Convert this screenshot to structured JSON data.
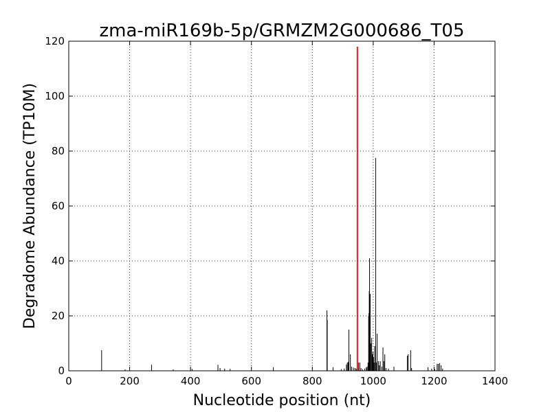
{
  "chart_data": {
    "type": "bar",
    "title": "zma-miR169b-5p/GRMZM2G000686_T05",
    "xlabel": "Nucleotide position (nt)",
    "ylabel": "Degradome Abundance (TP10M)",
    "xlim": [
      0,
      1400
    ],
    "ylim": [
      0,
      120
    ],
    "xticks": [
      0,
      200,
      400,
      600,
      800,
      1000,
      1200,
      1400
    ],
    "yticks": [
      0,
      20,
      40,
      60,
      80,
      100,
      120
    ],
    "grid": true,
    "series": [
      {
        "color": "#000000",
        "points": [
          [
            108,
            7.5
          ],
          [
            185,
            0.5
          ],
          [
            272,
            2.2
          ],
          [
            343,
            0.5
          ],
          [
            405,
            0.7
          ],
          [
            490,
            2.2
          ],
          [
            497,
            1.0
          ],
          [
            512,
            0.8
          ],
          [
            530,
            0.7
          ],
          [
            672,
            1.3
          ],
          [
            848,
            22.0
          ],
          [
            849,
            18.5
          ],
          [
            868,
            1.3
          ],
          [
            895,
            0.6
          ],
          [
            905,
            0.8
          ],
          [
            912,
            2.3
          ],
          [
            915,
            3.0
          ],
          [
            918,
            3.2
          ],
          [
            920,
            15.0
          ],
          [
            925,
            6.0
          ],
          [
            929,
            1.5
          ],
          [
            935,
            1.2
          ],
          [
            940,
            1.0
          ],
          [
            944,
            0.8
          ],
          [
            952,
            3.0
          ],
          [
            956,
            3.0
          ],
          [
            960,
            1.0
          ],
          [
            965,
            0.6
          ],
          [
            972,
            0.8
          ],
          [
            977,
            1.2
          ],
          [
            980,
            1.5
          ],
          [
            983,
            3.0
          ],
          [
            985,
            20.0
          ],
          [
            986,
            21.0
          ],
          [
            987,
            29.0
          ],
          [
            988,
            41.0
          ],
          [
            990,
            28.0
          ],
          [
            992,
            10.0
          ],
          [
            995,
            12.0
          ],
          [
            997,
            6.0
          ],
          [
            999,
            7.0
          ],
          [
            1001,
            5.0
          ],
          [
            1003,
            3.0
          ],
          [
            1005,
            9.0
          ],
          [
            1008,
            77.5
          ],
          [
            1010,
            3.0
          ],
          [
            1013,
            13.5
          ],
          [
            1017,
            3.5
          ],
          [
            1020,
            2.0
          ],
          [
            1023,
            3.5
          ],
          [
            1028,
            1.5
          ],
          [
            1032,
            8.5
          ],
          [
            1035,
            3.5
          ],
          [
            1038,
            6.0
          ],
          [
            1042,
            1.0
          ],
          [
            1050,
            0.8
          ],
          [
            1068,
            1.5
          ],
          [
            1112,
            5.5
          ],
          [
            1115,
            6.0
          ],
          [
            1123,
            7.5
          ],
          [
            1126,
            1.0
          ],
          [
            1180,
            1.3
          ],
          [
            1192,
            0.8
          ],
          [
            1202,
            0.6
          ],
          [
            1210,
            2.5
          ],
          [
            1214,
            2.5
          ],
          [
            1218,
            2.8
          ],
          [
            1223,
            2.0
          ],
          [
            1228,
            0.8
          ]
        ]
      },
      {
        "color": "#e41a1c",
        "points": [
          [
            948,
            118.0
          ]
        ]
      }
    ]
  }
}
